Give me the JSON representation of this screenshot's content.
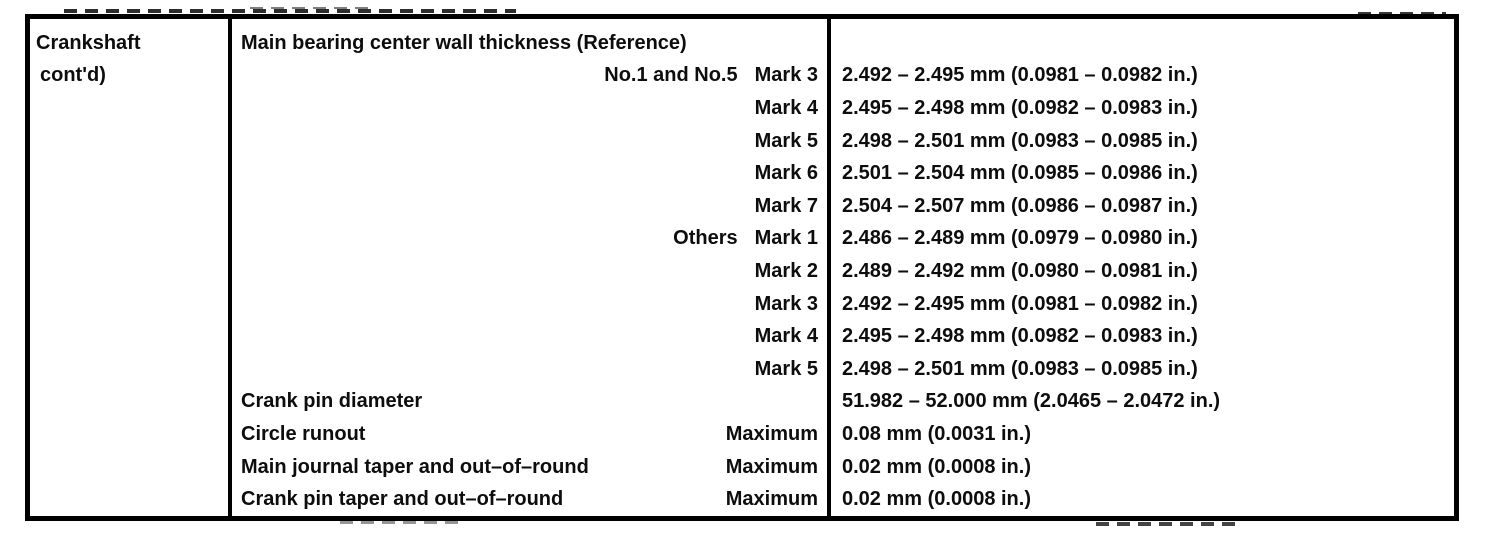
{
  "table": {
    "item_column": {
      "line1": "Crankshaft",
      "line2": "cont'd)"
    },
    "rows": [
      {
        "label": "Main bearing center wall thickness (Reference)",
        "group": "",
        "mark": "",
        "qualifier": "",
        "value": ""
      },
      {
        "label": "",
        "group": "No.1 and No.5",
        "mark": "Mark 3",
        "qualifier": "",
        "value": "2.492 – 2.495 mm (0.0981 – 0.0982 in.)"
      },
      {
        "label": "",
        "group": "",
        "mark": "Mark 4",
        "qualifier": "",
        "value": "2.495 – 2.498 mm (0.0982 – 0.0983 in.)"
      },
      {
        "label": "",
        "group": "",
        "mark": "Mark 5",
        "qualifier": "",
        "value": "2.498 – 2.501 mm (0.0983 – 0.0985 in.)"
      },
      {
        "label": "",
        "group": "",
        "mark": "Mark 6",
        "qualifier": "",
        "value": "2.501 – 2.504 mm (0.0985 – 0.0986 in.)"
      },
      {
        "label": "",
        "group": "",
        "mark": "Mark 7",
        "qualifier": "",
        "value": "2.504 – 2.507 mm (0.0986 – 0.0987 in.)"
      },
      {
        "label": "",
        "group": "Others",
        "mark": "Mark 1",
        "qualifier": "",
        "value": "2.486 – 2.489 mm (0.0979 – 0.0980 in.)"
      },
      {
        "label": "",
        "group": "",
        "mark": "Mark 2",
        "qualifier": "",
        "value": "2.489 – 2.492 mm (0.0980 – 0.0981 in.)"
      },
      {
        "label": "",
        "group": "",
        "mark": "Mark 3",
        "qualifier": "",
        "value": "2.492 – 2.495 mm (0.0981 – 0.0982 in.)"
      },
      {
        "label": "",
        "group": "",
        "mark": "Mark 4",
        "qualifier": "",
        "value": "2.495 – 2.498 mm (0.0982 – 0.0983 in.)"
      },
      {
        "label": "",
        "group": "",
        "mark": "Mark 5",
        "qualifier": "",
        "value": "2.498 – 2.501 mm (0.0983 – 0.0985 in.)"
      },
      {
        "label": "Crank pin diameter",
        "group": "",
        "mark": "",
        "qualifier": "",
        "value": "51.982 – 52.000 mm (2.0465 – 2.0472 in.)"
      },
      {
        "label": "Circle runout",
        "group": "",
        "mark": "",
        "qualifier": "Maximum",
        "value": "0.08 mm (0.0031 in.)"
      },
      {
        "label": "Main journal taper and out–of–round",
        "group": "",
        "mark": "",
        "qualifier": "Maximum",
        "value": "0.02 mm (0.0008 in.)"
      },
      {
        "label": "Crank pin taper and out–of–round",
        "group": "",
        "mark": "",
        "qualifier": "Maximum",
        "value": "0.02 mm (0.0008 in.)"
      }
    ]
  }
}
